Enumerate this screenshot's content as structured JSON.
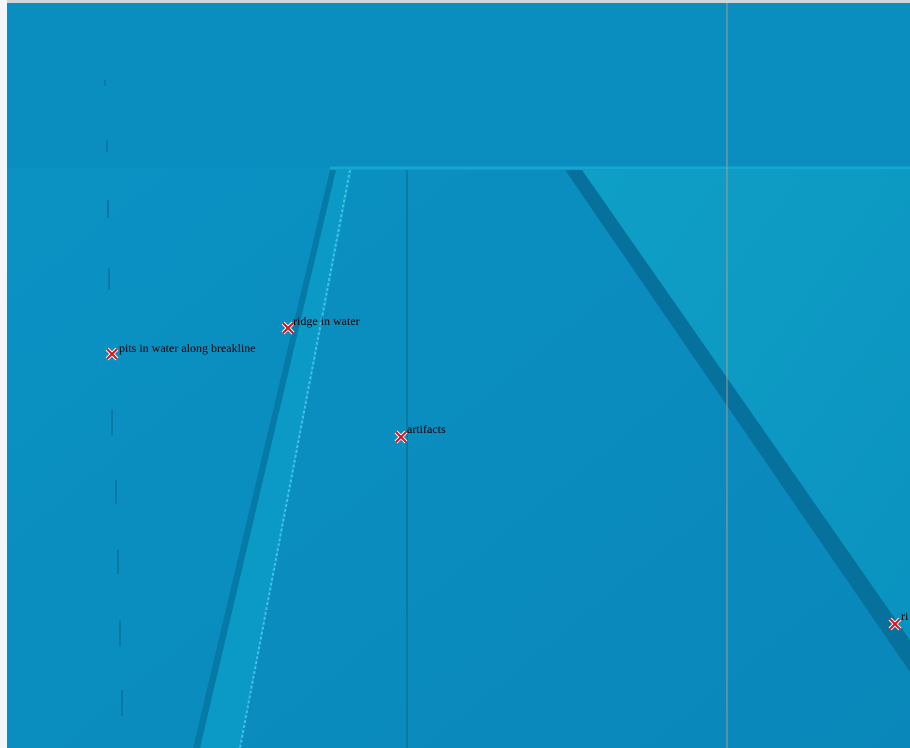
{
  "markers": [
    {
      "label": "pits in water along breakline"
    },
    {
      "label": "ridge in water"
    },
    {
      "label": "artifacts"
    },
    {
      "label": "ri"
    }
  ]
}
